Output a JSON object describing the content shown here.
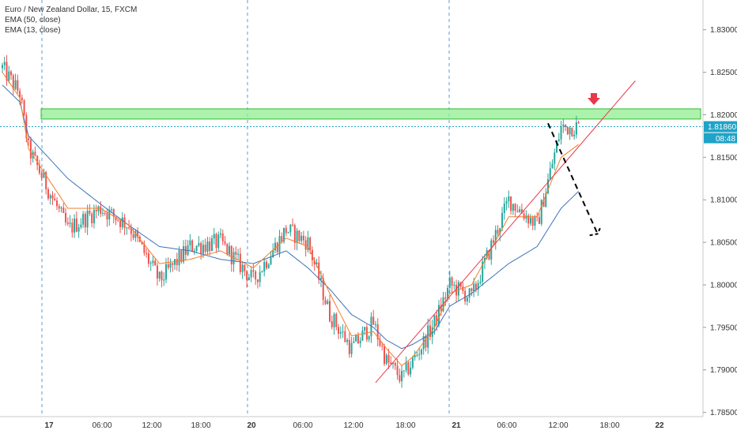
{
  "legend": {
    "symbol": "Euro / New Zealand Dollar, 15, FXCM",
    "ema50": "EMA (50, close)",
    "ema13": "EMA (13, close)"
  },
  "price_axis": {
    "ticks": [
      "1.83000",
      "1.82500",
      "1.82000",
      "1.81500",
      "1.81000",
      "1.80500",
      "1.80000",
      "1.79500",
      "1.79000",
      "1.78500"
    ],
    "current_price": "1.81860",
    "countdown": "08:48"
  },
  "time_axis": {
    "ticks": [
      {
        "label": "17",
        "bold": true
      },
      {
        "label": "06:00",
        "bold": false
      },
      {
        "label": "12:00",
        "bold": false
      },
      {
        "label": "18:00",
        "bold": false
      },
      {
        "label": "20",
        "bold": true
      },
      {
        "label": "06:00",
        "bold": false
      },
      {
        "label": "12:00",
        "bold": false
      },
      {
        "label": "18:00",
        "bold": false
      },
      {
        "label": "21",
        "bold": true
      },
      {
        "label": "06:00",
        "bold": false
      },
      {
        "label": "12:00",
        "bold": false
      },
      {
        "label": "18:00",
        "bold": false
      },
      {
        "label": "22",
        "bold": true
      }
    ]
  },
  "colors": {
    "up": "#26a69a",
    "down": "#ef5350",
    "ema50": "#3d73b8",
    "ema13": "#f57c2b",
    "zone_fill": "#90ee90",
    "zone_border": "#33bb33",
    "trendline": "#e8394b",
    "price_tag": "#1fa3c8",
    "session_line": "#5b9bd5",
    "forecast": "#000000",
    "arrow": "#e8394b"
  },
  "chart_data": {
    "type": "candlestick",
    "symbol": "Euro / New Zealand Dollar",
    "timeframe": "15",
    "source": "FXCM",
    "ylim": [
      1.7845,
      1.8335
    ],
    "session_starts": [
      "17",
      "20",
      "21"
    ],
    "key_points": {
      "x_index": [
        0,
        8,
        12,
        30,
        45,
        58,
        72,
        86,
        100,
        115,
        130,
        140,
        150,
        160,
        170,
        176,
        183,
        188,
        198,
        205,
        215,
        232,
        245,
        256,
        264
      ],
      "close": [
        1.8255,
        1.8225,
        1.816,
        1.8065,
        1.809,
        1.807,
        1.8005,
        1.8045,
        1.805,
        1.8005,
        1.8065,
        1.805,
        1.7965,
        1.7925,
        1.7955,
        1.791,
        1.789,
        1.791,
        1.7955,
        1.8,
        1.7985,
        1.81,
        1.807,
        1.8185,
        1.8186
      ]
    },
    "series": [
      {
        "name": "EMA (50, close)",
        "values": [
          1.8235,
          1.8215,
          1.8175,
          1.8125,
          1.8095,
          1.807,
          1.8045,
          1.804,
          1.803,
          1.8025,
          1.804,
          1.802,
          1.7995,
          1.7965,
          1.795,
          1.7935,
          1.7925,
          1.793,
          1.7945,
          1.7975,
          1.799,
          1.8025,
          1.8045,
          1.809,
          1.811
        ]
      },
      {
        "name": "EMA (13, close)",
        "values": [
          1.825,
          1.822,
          1.816,
          1.809,
          1.809,
          1.807,
          1.8025,
          1.803,
          1.804,
          1.802,
          1.8055,
          1.8045,
          1.799,
          1.794,
          1.7945,
          1.7925,
          1.7905,
          1.7915,
          1.795,
          1.799,
          1.8,
          1.808,
          1.808,
          1.815,
          1.8165
        ]
      }
    ],
    "resistance_zone": [
      1.8195,
      1.8207
    ],
    "current_price": 1.8186,
    "trendline": {
      "from": {
        "x_index": 171,
        "y": 1.7885
      },
      "to": {
        "x_index": 290,
        "y": 1.824
      }
    },
    "forecast": {
      "from": {
        "x_index": 250,
        "y": 1.819
      },
      "to": {
        "x_index": 268,
        "y": 1.806
      }
    }
  }
}
